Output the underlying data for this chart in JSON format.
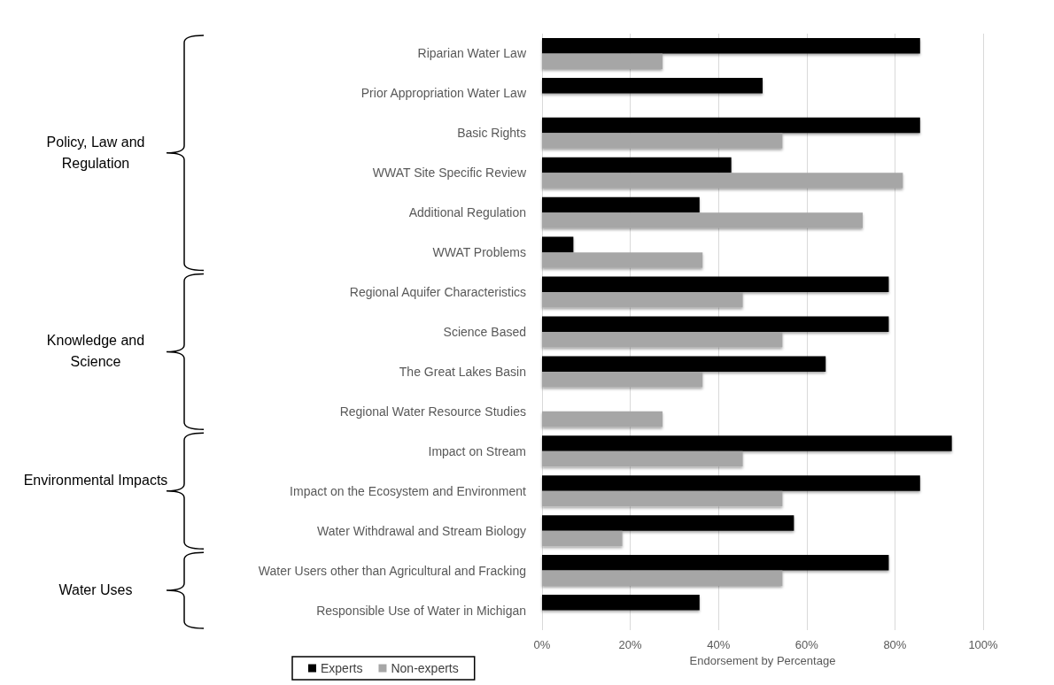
{
  "chart_data": {
    "type": "bar",
    "orientation": "horizontal",
    "xlabel": "Endorsement by Percentage",
    "categories": [
      "Riparian Water Law",
      "Prior Appropriation Water Law",
      "Basic Rights",
      "WWAT Site Specific Review",
      "Additional Regulation",
      "WWAT Problems",
      "Regional Aquifer Characteristics",
      "Science Based",
      "The Great Lakes Basin",
      "Regional Water Resource Studies",
      "Impact on Stream",
      "Impact on the Ecosystem and Environment",
      "Water Withdrawal and Stream Biology",
      "Water Users other than Agricultural and Fracking",
      "Responsible Use of Water in Michigan"
    ],
    "series": [
      {
        "name": "Experts",
        "color": "#000000",
        "values": [
          85.7,
          50.0,
          85.7,
          42.9,
          35.7,
          7.1,
          78.6,
          78.6,
          64.3,
          null,
          92.9,
          85.7,
          57.1,
          78.6,
          35.7
        ]
      },
      {
        "name": "Non-experts",
        "color": "#a6a6a6",
        "values": [
          27.3,
          null,
          54.5,
          81.8,
          72.7,
          36.4,
          45.5,
          54.5,
          36.4,
          27.3,
          45.5,
          54.5,
          18.2,
          54.5,
          null
        ]
      }
    ],
    "xlim": [
      0,
      100
    ],
    "xticks": [
      {
        "value": 0,
        "label": "0%"
      },
      {
        "value": 20,
        "label": "20%"
      },
      {
        "value": 40,
        "label": "40%"
      },
      {
        "value": 60,
        "label": "60%"
      },
      {
        "value": 80,
        "label": "80%"
      },
      {
        "value": 100,
        "label": "100%"
      }
    ],
    "grid": "x",
    "legend": "bottom left",
    "annotations": [
      "Policy, Law and Regulation",
      "Knowledge and Science",
      "Environmental Impacts",
      "Water Uses"
    ]
  }
}
